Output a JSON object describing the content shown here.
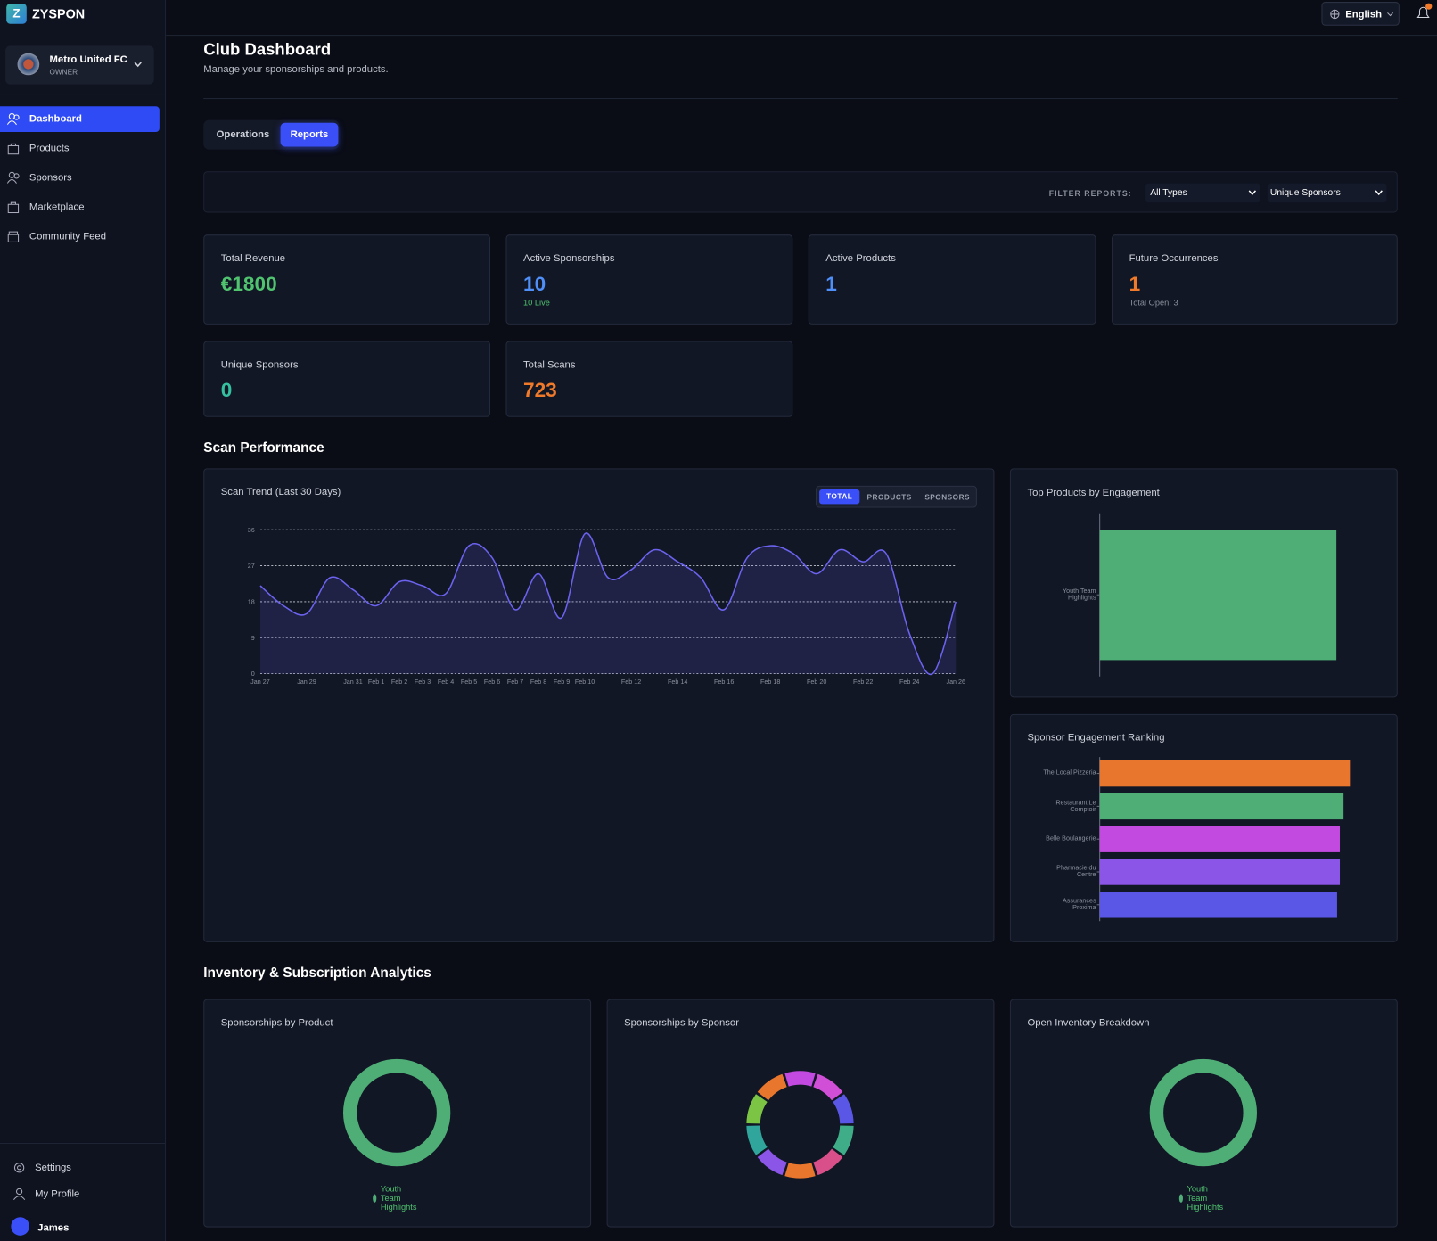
{
  "sidebar": {
    "logo_letter": "Z",
    "brand": "ZYSPON",
    "club": "Metro United FC",
    "role": "OWNER",
    "nav": [
      "Dashboard",
      "Products",
      "Sponsors",
      "Marketplace",
      "Community Feed"
    ],
    "bottom": [
      "Settings",
      "My Profile"
    ],
    "user": "James"
  },
  "header": {
    "language": "English"
  },
  "page": {
    "title": "Club Dashboard",
    "subtitle": "Manage your sponsorships and products.",
    "tabs": [
      "Operations",
      "Reports"
    ],
    "filter_label": "FILTER REPORTS:",
    "filters": [
      "All Types",
      "Unique Sponsors"
    ]
  },
  "stats": [
    {
      "label": "Total Revenue",
      "value": "€1800"
    },
    {
      "label": "Active Sponsorships",
      "value": "10",
      "note": "10 Live"
    },
    {
      "label": "Active Products",
      "value": "1"
    },
    {
      "label": "Future Occurrences",
      "value": "1",
      "note": "Total Open: 3"
    },
    {
      "label": "Unique Sponsors",
      "value": "0"
    },
    {
      "label": "Total Scans",
      "value": "723"
    }
  ],
  "sections": [
    "Scan Performance",
    "Inventory & Subscription Analytics"
  ],
  "trend_toggle": [
    "TOTAL",
    "PRODUCTS",
    "SPONSORS"
  ],
  "chart_data": [
    {
      "type": "line",
      "title": "Scan Trend (Last 30 Days)",
      "categories": [
        "Jan 27",
        null,
        "Jan 29",
        null,
        "Jan 31",
        "Feb 1",
        "Feb 2",
        "Feb 3",
        "Feb 4",
        "Feb 5",
        "Feb 6",
        "Feb 7",
        "Feb 8",
        "Feb 9",
        "Feb 10",
        null,
        "Feb 12",
        null,
        "Feb 14",
        null,
        "Feb 16",
        null,
        "Feb 18",
        null,
        "Feb 20",
        null,
        "Feb 22",
        null,
        "Feb 24",
        null,
        "Jan 26"
      ],
      "values": [
        22,
        17,
        15,
        24,
        21,
        17,
        23,
        22,
        20,
        32,
        29,
        16,
        25,
        14,
        35,
        24,
        26,
        31,
        28,
        24,
        16,
        29,
        32,
        30,
        25,
        31,
        28,
        30,
        10,
        0,
        18
      ],
      "color": "#6b63f0",
      "ylim": [
        0,
        36
      ],
      "yticks": [
        0,
        9,
        18,
        27,
        36
      ],
      "grid": true
    },
    {
      "type": "bar",
      "horizontal": true,
      "title": "Top Products by Engagement",
      "categories": [
        "Youth Team Highlights"
      ],
      "values": [
        723
      ],
      "color": "#4fae76",
      "xlim": [
        0,
        840
      ]
    },
    {
      "type": "bar",
      "horizontal": true,
      "title": "Sponsor Engagement Ranking",
      "categories": [
        "The Local Pizzeria",
        "Restaurant Le Comptoir",
        "Belle Boulangerie",
        "Pharmacie du Centre",
        "Assurances Proxima"
      ],
      "values": [
        273,
        266,
        262,
        262,
        259
      ],
      "colors": [
        "#e8762d",
        "#4fae76",
        "#c34ae0",
        "#8b55e8",
        "#5b57e6"
      ],
      "xlim": [
        0,
        300
      ]
    },
    {
      "type": "pie",
      "title": "Sponsorships by Product",
      "categories": [
        "Youth Team Highlights"
      ],
      "values": [
        10
      ],
      "colors": [
        "#4fae76"
      ]
    },
    {
      "type": "pie",
      "title": "Sponsorships by Sponsor",
      "categories": [
        null,
        null,
        null,
        null,
        null,
        null,
        null,
        null,
        null,
        null
      ],
      "values": [
        1,
        1,
        1,
        1,
        1,
        1,
        1,
        1,
        1,
        1
      ],
      "colors": [
        "#c34ae0",
        "#d04fd6",
        "#5b57e6",
        "#3fae88",
        "#d94f8a",
        "#e8762d",
        "#8b55e8",
        "#2fa59b",
        "#7cc444",
        "#e8762d"
      ]
    },
    {
      "type": "pie",
      "title": "Open Inventory Breakdown",
      "categories": [
        "Youth Team Highlights"
      ],
      "values": [
        3
      ],
      "colors": [
        "#4fae76"
      ]
    }
  ]
}
